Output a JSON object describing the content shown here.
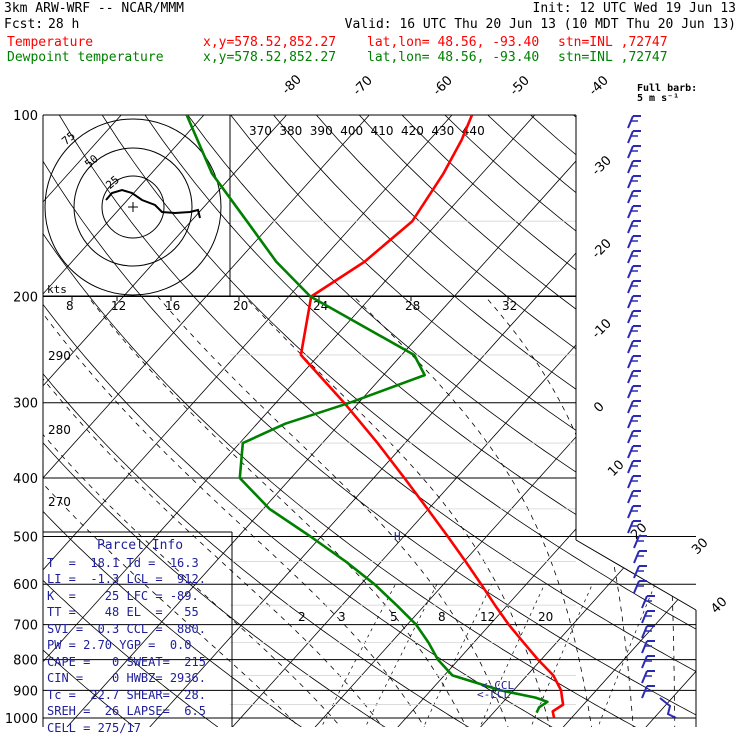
{
  "header": {
    "model": "3km ARW-WRF -- NCAR/MMM",
    "init": "Init: 12 UTC Wed 19 Jun 13",
    "fcst_label": "Fcst:",
    "fcst_value": "28 h",
    "valid": "Valid: 16 UTC Thu 20 Jun 13 (10 MDT Thu 20 Jun 13)",
    "line1_name": "Temperature",
    "line1_xy": "x,y=578.52,852.27",
    "line1_latlon": "lat,lon= 48.56, -93.40",
    "line1_stn": "stn=INL ,72747",
    "line2_name": "Dewpoint temperature",
    "line2_xy": "x,y=578.52,852.27",
    "line2_latlon": "lat,lon= 48.56, -93.40",
    "line2_stn": "stn=INL ,72747"
  },
  "barb_legend": {
    "line1": "Full barb:",
    "line2": "5 m s⁻¹"
  },
  "hodo": {
    "rings": [
      "75",
      "50",
      "25"
    ],
    "kts_label": "kts"
  },
  "parcel_info": {
    "title": "Parcel Info",
    "rows": [
      "T  =  18.1 Td =  16.3",
      "LI =  -1.3 LCL =  912.",
      "K  =    25 LFC = -89.",
      "TT =    48 EL  =   55",
      "SVI =  0.3 CCL =  880.",
      "PW = 2.70 YGP =  0.0",
      "CAPE =   0 SWEAT=  215",
      "CIN =    0 HWBZ= 2936.",
      "Tc =  22.7 SHEAR=  28.",
      "SREH =  26 LAPSE=  6.5",
      "CELL = 275/17"
    ]
  },
  "annotations": {
    "ccl": "<-CCL",
    "lcl": "<-LCL",
    "freezing_mark": "H"
  },
  "chart_data": {
    "type": "line",
    "title": "",
    "ylabel": "",
    "y_scale": "log",
    "ylim": [
      1000,
      100
    ],
    "pressure_ticks": [
      100,
      200,
      300,
      400,
      500,
      600,
      700,
      800,
      900,
      1000
    ],
    "isotherm_labels": [
      "-80",
      "-70",
      "-60",
      "-50",
      "-40",
      "-30",
      "-20",
      "-10",
      "0",
      "10",
      "20",
      "30",
      "40"
    ],
    "theta_labels": [
      "370",
      "380",
      "390",
      "400",
      "410",
      "420",
      "430",
      "440"
    ],
    "theta_side_labels": [
      "290",
      "280",
      "270"
    ],
    "mixing_ratio_labels": [
      "2",
      "3",
      "5",
      "8",
      "12",
      "20"
    ],
    "thetae_labels": [
      "8",
      "12",
      "16",
      "20",
      "24",
      "28",
      "32"
    ],
    "series": [
      {
        "name": "Temperature",
        "color": "#ff0000",
        "points": [
          [
            1000,
            19.0
          ],
          [
            975,
            18.1
          ],
          [
            950,
            18.6
          ],
          [
            925,
            17.7
          ],
          [
            900,
            16.8
          ],
          [
            850,
            14.2
          ],
          [
            800,
            10.6
          ],
          [
            750,
            7.0
          ],
          [
            700,
            3.2
          ],
          [
            650,
            -0.6
          ],
          [
            600,
            -4.6
          ],
          [
            550,
            -9.0
          ],
          [
            500,
            -13.9
          ],
          [
            450,
            -19.4
          ],
          [
            400,
            -25.6
          ],
          [
            350,
            -32.7
          ],
          [
            300,
            -41.2
          ],
          [
            250,
            -51.7
          ],
          [
            200,
            -56.9
          ],
          [
            175,
            -54.3
          ],
          [
            150,
            -53.0
          ],
          [
            125,
            -54.5
          ],
          [
            110,
            -56.0
          ],
          [
            100,
            -57.5
          ]
        ]
      },
      {
        "name": "Dewpoint temperature",
        "color": "#008000",
        "points": [
          [
            980,
            16.3
          ],
          [
            960,
            16.0
          ],
          [
            940,
            16.4
          ],
          [
            925,
            14.5
          ],
          [
            900,
            9.5
          ],
          [
            850,
            2.0
          ],
          [
            800,
            -1.5
          ],
          [
            750,
            -4.5
          ],
          [
            700,
            -8.0
          ],
          [
            650,
            -12.5
          ],
          [
            600,
            -17.5
          ],
          [
            550,
            -23.5
          ],
          [
            500,
            -30.5
          ],
          [
            450,
            -38.5
          ],
          [
            400,
            -45.5
          ],
          [
            350,
            -49.0
          ],
          [
            325,
            -46.0
          ],
          [
            300,
            -40.5
          ],
          [
            270,
            -34.5
          ],
          [
            250,
            -38.0
          ],
          [
            200,
            -57.0
          ],
          [
            175,
            -65.0
          ],
          [
            150,
            -73.0
          ],
          [
            125,
            -82.5
          ],
          [
            100,
            -92.0
          ]
        ]
      }
    ]
  },
  "colors": {
    "temperature": "#ff0000",
    "dewpoint": "#008000",
    "barbs": "#2a2ab4",
    "info_text": "#1e1e9a",
    "grid": "#000000"
  }
}
